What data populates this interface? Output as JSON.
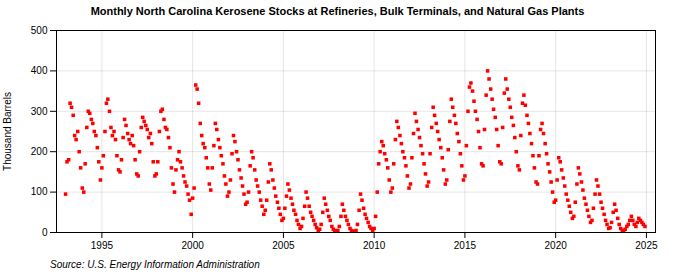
{
  "chart_data": {
    "type": "scatter",
    "title": "Monthly North Carolina Kerosene Stocks at Refineries, Bulk Terminals, and Natural Gas Plants",
    "ylabel": "Thousand Barrels",
    "annotations": [
      "Source: U.S. Energy Information Administration"
    ],
    "color": "#FF0000",
    "marker": "square",
    "grid": true,
    "xlim": [
      1992.5,
      2025.5
    ],
    "xticks": [
      1995,
      2000,
      2005,
      2010,
      2015,
      2020,
      2025
    ],
    "ylim": [
      0,
      500
    ],
    "yticks": [
      0,
      100,
      200,
      300,
      400,
      500
    ],
    "x": [
      1993.0,
      1993.08,
      1993.17,
      1993.25,
      1993.33,
      1993.42,
      1993.5,
      1993.58,
      1993.67,
      1993.75,
      1993.83,
      1993.92,
      1994.0,
      1994.08,
      1994.17,
      1994.25,
      1994.33,
      1994.42,
      1994.5,
      1994.58,
      1994.67,
      1994.75,
      1994.83,
      1994.92,
      1995.0,
      1995.08,
      1995.17,
      1995.25,
      1995.33,
      1995.42,
      1995.5,
      1995.58,
      1995.67,
      1995.75,
      1995.83,
      1995.92,
      1996.0,
      1996.08,
      1996.17,
      1996.25,
      1996.33,
      1996.42,
      1996.5,
      1996.58,
      1996.67,
      1996.75,
      1996.83,
      1996.92,
      1997.0,
      1997.08,
      1997.17,
      1997.25,
      1997.33,
      1997.42,
      1997.5,
      1997.58,
      1997.67,
      1997.75,
      1997.83,
      1997.92,
      1998.0,
      1998.08,
      1998.17,
      1998.25,
      1998.33,
      1998.42,
      1998.5,
      1998.58,
      1998.67,
      1998.75,
      1998.83,
      1998.92,
      1999.0,
      1999.08,
      1999.17,
      1999.25,
      1999.33,
      1999.42,
      1999.5,
      1999.58,
      1999.67,
      1999.75,
      1999.83,
      1999.92,
      2000.0,
      2000.08,
      2000.17,
      2000.25,
      2000.33,
      2000.42,
      2000.5,
      2000.58,
      2000.67,
      2000.75,
      2000.83,
      2000.92,
      2001.0,
      2001.08,
      2001.17,
      2001.25,
      2001.33,
      2001.42,
      2001.5,
      2001.58,
      2001.67,
      2001.75,
      2001.83,
      2001.92,
      2002.0,
      2002.08,
      2002.17,
      2002.25,
      2002.33,
      2002.42,
      2002.5,
      2002.58,
      2002.67,
      2002.75,
      2002.83,
      2002.92,
      2003.0,
      2003.08,
      2003.17,
      2003.25,
      2003.33,
      2003.42,
      2003.5,
      2003.58,
      2003.67,
      2003.75,
      2003.83,
      2003.92,
      2004.0,
      2004.08,
      2004.17,
      2004.25,
      2004.33,
      2004.42,
      2004.5,
      2004.58,
      2004.67,
      2004.75,
      2004.83,
      2004.92,
      2005.0,
      2005.08,
      2005.17,
      2005.25,
      2005.33,
      2005.42,
      2005.5,
      2005.58,
      2005.67,
      2005.75,
      2005.83,
      2005.92,
      2006.0,
      2006.08,
      2006.17,
      2006.25,
      2006.33,
      2006.42,
      2006.5,
      2006.58,
      2006.67,
      2006.75,
      2006.83,
      2006.92,
      2007.0,
      2007.08,
      2007.17,
      2007.25,
      2007.33,
      2007.42,
      2007.5,
      2007.58,
      2007.67,
      2007.75,
      2007.83,
      2007.92,
      2008.0,
      2008.08,
      2008.17,
      2008.25,
      2008.33,
      2008.42,
      2008.5,
      2008.58,
      2008.67,
      2008.75,
      2008.83,
      2008.92,
      2009.0,
      2009.08,
      2009.17,
      2009.25,
      2009.33,
      2009.42,
      2009.5,
      2009.58,
      2009.67,
      2009.75,
      2009.83,
      2009.92,
      2010.0,
      2010.08,
      2010.17,
      2010.25,
      2010.33,
      2010.42,
      2010.5,
      2010.58,
      2010.67,
      2010.75,
      2010.83,
      2010.92,
      2011.0,
      2011.08,
      2011.17,
      2011.25,
      2011.33,
      2011.42,
      2011.5,
      2011.58,
      2011.67,
      2011.75,
      2011.83,
      2011.92,
      2012.0,
      2012.08,
      2012.17,
      2012.25,
      2012.33,
      2012.42,
      2012.5,
      2012.58,
      2012.67,
      2012.75,
      2012.83,
      2012.92,
      2013.0,
      2013.08,
      2013.17,
      2013.25,
      2013.33,
      2013.42,
      2013.5,
      2013.58,
      2013.67,
      2013.75,
      2013.83,
      2013.92,
      2014.0,
      2014.08,
      2014.17,
      2014.25,
      2014.33,
      2014.42,
      2014.5,
      2014.58,
      2014.67,
      2014.75,
      2014.83,
      2014.92,
      2015.0,
      2015.08,
      2015.17,
      2015.25,
      2015.33,
      2015.42,
      2015.5,
      2015.58,
      2015.67,
      2015.75,
      2015.83,
      2015.92,
      2016.0,
      2016.08,
      2016.17,
      2016.25,
      2016.33,
      2016.42,
      2016.5,
      2016.58,
      2016.67,
      2016.75,
      2016.83,
      2016.92,
      2017.0,
      2017.08,
      2017.17,
      2017.25,
      2017.33,
      2017.42,
      2017.5,
      2017.58,
      2017.67,
      2017.75,
      2017.83,
      2017.92,
      2018.0,
      2018.08,
      2018.17,
      2018.25,
      2018.33,
      2018.42,
      2018.5,
      2018.58,
      2018.67,
      2018.75,
      2018.83,
      2018.92,
      2019.0,
      2019.08,
      2019.17,
      2019.25,
      2019.33,
      2019.42,
      2019.5,
      2019.58,
      2019.67,
      2019.75,
      2019.83,
      2019.92,
      2020.0,
      2020.08,
      2020.17,
      2020.25,
      2020.33,
      2020.42,
      2020.5,
      2020.58,
      2020.67,
      2020.75,
      2020.83,
      2020.92,
      2021.0,
      2021.08,
      2021.17,
      2021.25,
      2021.33,
      2021.42,
      2021.5,
      2021.58,
      2021.67,
      2021.75,
      2021.83,
      2021.92,
      2022.0,
      2022.08,
      2022.17,
      2022.25,
      2022.33,
      2022.42,
      2022.5,
      2022.58,
      2022.67,
      2022.75,
      2022.83,
      2022.92,
      2023.0,
      2023.08,
      2023.17,
      2023.25,
      2023.33,
      2023.42,
      2023.5,
      2023.58,
      2023.67,
      2023.75,
      2023.83,
      2023.92,
      2024.0,
      2024.08,
      2024.17,
      2024.25,
      2024.33,
      2024.42,
      2024.5,
      2024.58,
      2024.67,
      2024.75,
      2024.83,
      2024.92
    ],
    "values": [
      95,
      175,
      180,
      320,
      310,
      290,
      240,
      230,
      250,
      200,
      160,
      110,
      100,
      170,
      260,
      300,
      295,
      280,
      270,
      250,
      240,
      210,
      175,
      130,
      160,
      190,
      250,
      320,
      330,
      300,
      260,
      240,
      250,
      230,
      190,
      155,
      150,
      180,
      235,
      280,
      265,
      245,
      230,
      220,
      240,
      215,
      180,
      145,
      140,
      200,
      260,
      285,
      275,
      265,
      255,
      235,
      245,
      220,
      175,
      140,
      145,
      175,
      250,
      300,
      305,
      280,
      260,
      255,
      235,
      210,
      160,
      120,
      100,
      155,
      180,
      200,
      175,
      160,
      140,
      125,
      115,
      95,
      80,
      45,
      85,
      110,
      365,
      355,
      320,
      270,
      240,
      220,
      210,
      185,
      160,
      120,
      105,
      160,
      215,
      270,
      255,
      230,
      210,
      190,
      170,
      140,
      120,
      90,
      100,
      130,
      195,
      240,
      225,
      200,
      180,
      155,
      135,
      115,
      95,
      70,
      75,
      100,
      165,
      200,
      185,
      155,
      130,
      115,
      100,
      80,
      65,
      45,
      55,
      80,
      125,
      170,
      155,
      130,
      110,
      90,
      75,
      60,
      45,
      30,
      35,
      60,
      90,
      120,
      105,
      85,
      70,
      55,
      45,
      30,
      20,
      10,
      15,
      35,
      65,
      100,
      85,
      65,
      50,
      40,
      30,
      20,
      12,
      5,
      8,
      20,
      50,
      85,
      70,
      55,
      40,
      30,
      15,
      8,
      5,
      3,
      5,
      15,
      40,
      70,
      55,
      40,
      30,
      20,
      10,
      5,
      3,
      2,
      5,
      20,
      55,
      95,
      80,
      60,
      45,
      35,
      25,
      15,
      10,
      5,
      10,
      40,
      100,
      170,
      200,
      225,
      215,
      195,
      180,
      160,
      130,
      100,
      110,
      170,
      230,
      275,
      260,
      240,
      220,
      200,
      185,
      165,
      140,
      110,
      120,
      185,
      245,
      295,
      275,
      255,
      235,
      215,
      195,
      170,
      145,
      115,
      125,
      195,
      260,
      310,
      290,
      270,
      250,
      230,
      210,
      185,
      155,
      120,
      130,
      205,
      275,
      330,
      310,
      290,
      270,
      245,
      225,
      195,
      165,
      130,
      140,
      215,
      300,
      360,
      370,
      350,
      325,
      300,
      280,
      250,
      210,
      170,
      165,
      255,
      340,
      400,
      380,
      355,
      330,
      305,
      285,
      255,
      215,
      175,
      170,
      260,
      345,
      380,
      355,
      330,
      310,
      285,
      265,
      235,
      200,
      165,
      155,
      240,
      320,
      340,
      315,
      290,
      270,
      245,
      220,
      190,
      160,
      125,
      120,
      190,
      255,
      270,
      245,
      220,
      195,
      170,
      150,
      125,
      100,
      75,
      80,
      130,
      185,
      175,
      155,
      135,
      115,
      95,
      80,
      65,
      50,
      35,
      40,
      75,
      120,
      160,
      145,
      125,
      105,
      85,
      70,
      55,
      40,
      25,
      30,
      60,
      95,
      130,
      115,
      95,
      75,
      60,
      45,
      30,
      20,
      10,
      12,
      25,
      50,
      70,
      55,
      35,
      20,
      10,
      5,
      5,
      8,
      15,
      20,
      30,
      40,
      30,
      20,
      15,
      25,
      35,
      30,
      25,
      20,
      15
    ]
  }
}
